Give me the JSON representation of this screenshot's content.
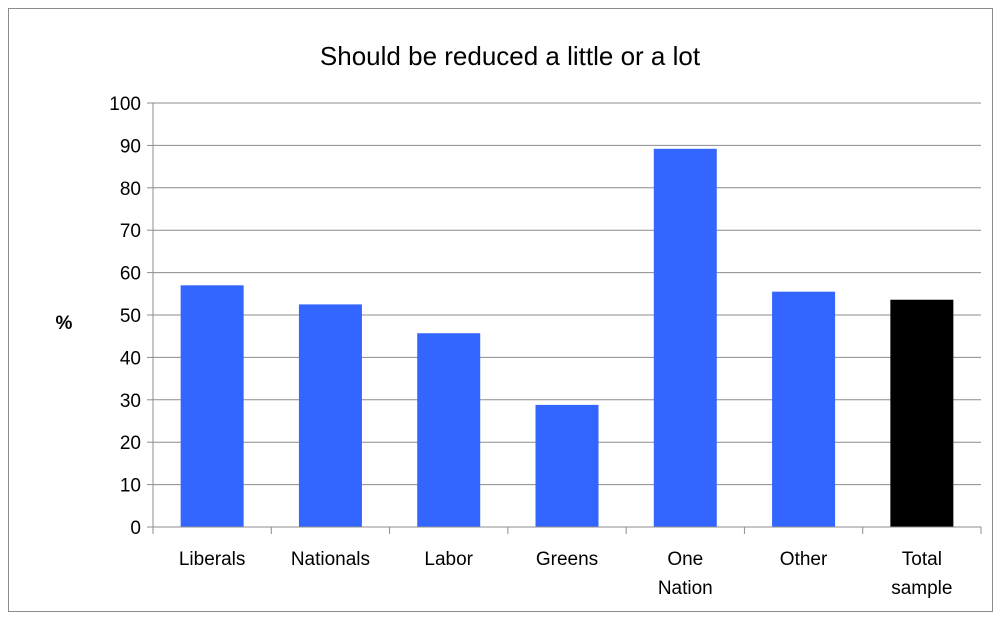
{
  "chart_data": {
    "type": "bar",
    "title": "Should be reduced a little or a lot",
    "xlabel": "",
    "ylabel": "%",
    "categories": [
      [
        "Liberals"
      ],
      [
        "Nationals"
      ],
      [
        "Labor"
      ],
      [
        "Greens"
      ],
      [
        "One",
        "Nation"
      ],
      [
        "Other"
      ],
      [
        "Total",
        "sample"
      ]
    ],
    "values": [
      57,
      52.5,
      45.7,
      28.8,
      89.2,
      55.5,
      53.6
    ],
    "bar_colors": [
      "#3366ff",
      "#3366ff",
      "#3366ff",
      "#3366ff",
      "#3366ff",
      "#3366ff",
      "#000000"
    ],
    "ylim": [
      0,
      100
    ],
    "yticks": [
      0,
      10,
      20,
      30,
      40,
      50,
      60,
      70,
      80,
      90,
      100
    ],
    "grid": true,
    "legend": "none"
  }
}
